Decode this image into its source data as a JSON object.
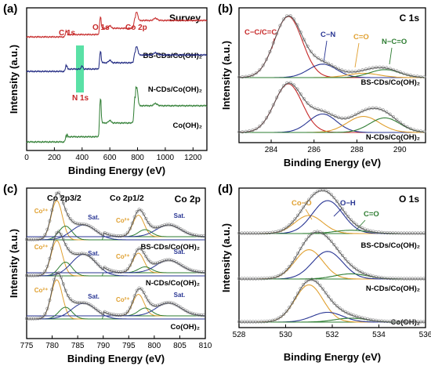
{
  "panels": [
    {
      "letter": "(a)",
      "title": "Survey",
      "xlabel": "Binding Energy (eV)",
      "ylabel": "Intensity (a.u.)",
      "xlim": [
        0,
        1300
      ],
      "xticks": [
        "0",
        "200",
        "400",
        "600",
        "800",
        "1000",
        "1200"
      ],
      "samples": [
        "BS-CDs/Co(OH)₂",
        "N-CDs/Co(OH)₂",
        "Co(OH)₂"
      ],
      "peak_labels": [
        "C 1s",
        "O 1s",
        "Co 2p",
        "N 1s"
      ]
    },
    {
      "letter": "(b)",
      "title": "C 1s",
      "xlabel": "Binding Energy (eV)",
      "ylabel": "Intensity (a.u.)",
      "xlim": [
        282.5,
        291.2
      ],
      "xticks": [
        "284",
        "286",
        "288",
        "290"
      ],
      "samples": [
        "BS-CDs/Co(OH)₂",
        "N-CDs/Co(OH)₂"
      ],
      "component_labels": [
        "C−C/C=C",
        "C−N",
        "C=O",
        "N−C=O"
      ]
    },
    {
      "letter": "(c)",
      "title": "Co 2p",
      "xlabel": "Binding Energy (eV)",
      "ylabel": "Intensity (a.u.)",
      "xlim": [
        775,
        810
      ],
      "xticks": [
        "775",
        "780",
        "785",
        "790",
        "795",
        "800",
        "805",
        "810"
      ],
      "samples": [
        "BS-CDs/Co(OH)₂",
        "N-CDs/Co(OH)₂",
        "Co(OH)₂"
      ],
      "orbital_labels": [
        "Co 2p3/2",
        "Co 2p1/2"
      ],
      "component_labels": [
        "Co²⁺",
        "Sat."
      ]
    },
    {
      "letter": "(d)",
      "title": "O 1s",
      "xlabel": "Binding Energy (eV)",
      "ylabel": "Intensity (a.u.)",
      "xlim": [
        528,
        536
      ],
      "xticks": [
        "528",
        "530",
        "532",
        "534",
        "536"
      ],
      "samples": [
        "BS-CDs/Co(OH)₂",
        "N-CDs/Co(OH)₂",
        "Co(OH)₂"
      ],
      "component_labels": [
        "Co−O",
        "O−H",
        "C=O"
      ]
    }
  ],
  "chart_data": [
    {
      "type": "line",
      "panel": "(a)",
      "title": "Survey",
      "xlabel": "Binding Energy (eV)",
      "ylabel": "Intensity (a.u.)",
      "xlim": [
        0,
        1300
      ],
      "series": [
        {
          "name": "BS-CDs/Co(OH)₂",
          "color": "#c62828",
          "peaks_eV": [
            285,
            531,
            781,
            797
          ]
        },
        {
          "name": "N-CDs/Co(OH)₂",
          "color": "#1a237e",
          "peaks_eV": [
            285,
            400,
            531,
            781,
            797
          ]
        },
        {
          "name": "Co(OH)₂",
          "color": "#2e7d32",
          "peaks_eV": [
            285,
            531,
            781,
            797
          ]
        }
      ],
      "highlight_eV": [
        370,
        430
      ]
    },
    {
      "type": "line",
      "panel": "(b)",
      "title": "C 1s",
      "xlabel": "Binding Energy (eV)",
      "ylabel": "Intensity (a.u.)",
      "xlim": [
        282.5,
        291.2
      ],
      "components": [
        {
          "name": "C−C/C=C",
          "center": 284.8,
          "color": "#c62828"
        },
        {
          "name": "C−N",
          "center": 286.4,
          "color": "#283593"
        },
        {
          "name": "C=O",
          "center": 288.3,
          "color": "#e0a030"
        },
        {
          "name": "N−C=O",
          "center": 289.3,
          "color": "#2e7d32"
        }
      ],
      "series": [
        {
          "name": "BS-CDs/Co(OH)₂",
          "component_amplitudes": [
            1.0,
            0.22,
            0.07,
            0.13
          ]
        },
        {
          "name": "N-CDs/Co(OH)₂",
          "component_amplitudes": [
            1.0,
            0.38,
            0.33,
            0.3
          ]
        }
      ]
    },
    {
      "type": "line",
      "panel": "(c)",
      "title": "Co 2p",
      "xlabel": "Binding Energy (eV)",
      "ylabel": "Intensity (a.u.)",
      "xlim": [
        775,
        810
      ],
      "components": [
        {
          "name": "Co²⁺ 2p3/2",
          "center": 780.9,
          "color": "#e0a030"
        },
        {
          "name": "Co²⁺ 2p3/2 (2)",
          "center": 782.6,
          "color": "#2e7d32"
        },
        {
          "name": "Sat. 2p3/2",
          "center": 786.2,
          "color": "#283593"
        },
        {
          "name": "Co²⁺ 2p1/2",
          "center": 796.9,
          "color": "#e0a030"
        },
        {
          "name": "Co²⁺ 2p1/2 (2)",
          "center": 798.2,
          "color": "#2e7d32"
        },
        {
          "name": "Sat. 2p1/2",
          "center": 802.8,
          "color": "#283593"
        }
      ],
      "series": [
        {
          "name": "BS-CDs/Co(OH)₂"
        },
        {
          "name": "N-CDs/Co(OH)₂"
        },
        {
          "name": "Co(OH)₂"
        }
      ]
    },
    {
      "type": "line",
      "panel": "(d)",
      "title": "O 1s",
      "xlabel": "Binding Energy (eV)",
      "ylabel": "Intensity (a.u.)",
      "xlim": [
        528,
        536
      ],
      "components": [
        {
          "name": "Co−O",
          "center": 531.0,
          "color": "#e0a030"
        },
        {
          "name": "O−H",
          "center": 531.8,
          "color": "#283593"
        },
        {
          "name": "C=O",
          "center": 532.8,
          "color": "#2e7d32"
        }
      ],
      "series": [
        {
          "name": "BS-CDs/Co(OH)₂",
          "component_amplitudes": [
            0.55,
            1.0,
            0.1
          ]
        },
        {
          "name": "N-CDs/Co(OH)₂",
          "component_amplitudes": [
            0.85,
            0.8,
            0.15
          ]
        },
        {
          "name": "Co(OH)₂",
          "component_amplitudes": [
            0.95,
            0.25,
            0.1
          ]
        }
      ]
    }
  ]
}
